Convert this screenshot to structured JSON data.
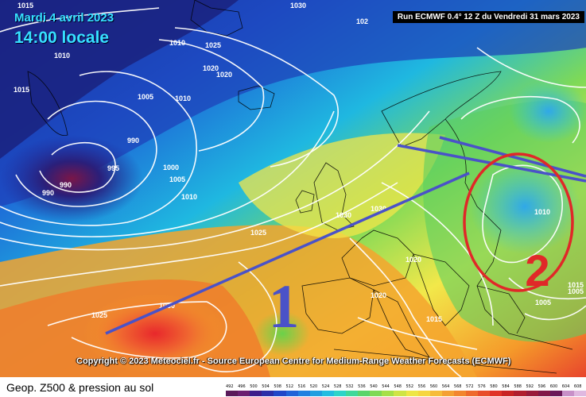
{
  "header": {
    "date": "Mardi 4 avril 2023",
    "time": "14:00 locale",
    "run": "Run ECMWF 0.4° 12 Z du Vendredi 31 mars 2023"
  },
  "copyright": "Copyright © 2023 Meteociel.fr - Source European Centre for Medium-Range Weather Forecasts (ECMWF)",
  "footer": {
    "title": "Geop. Z500 & pression au sol",
    "scale_ticks": [
      "492",
      "496",
      "500",
      "504",
      "508",
      "512",
      "516",
      "520",
      "524",
      "528",
      "532",
      "536",
      "540",
      "544",
      "548",
      "552",
      "556",
      "560",
      "564",
      "568",
      "572",
      "576",
      "580",
      "584",
      "588",
      "592",
      "596",
      "600",
      "604",
      "608"
    ]
  },
  "annotations": {
    "label_1": "1",
    "label_2": "2"
  },
  "isobars": [
    "1015",
    "1030",
    "102",
    "1010",
    "1025",
    "1020",
    "1020",
    "1015",
    "1010",
    "1005",
    "1010",
    "990",
    "995",
    "1000",
    "1005",
    "1010",
    "990",
    "990",
    "1025",
    "1030",
    "1030",
    "1020",
    "1020",
    "1015",
    "1010",
    "1005",
    "1005",
    "1025",
    "1030",
    "1015"
  ],
  "colors": {
    "accent_cyan": "#36e0ff",
    "annotation_blue": "#4a52c8",
    "annotation_red": "#e02828"
  }
}
